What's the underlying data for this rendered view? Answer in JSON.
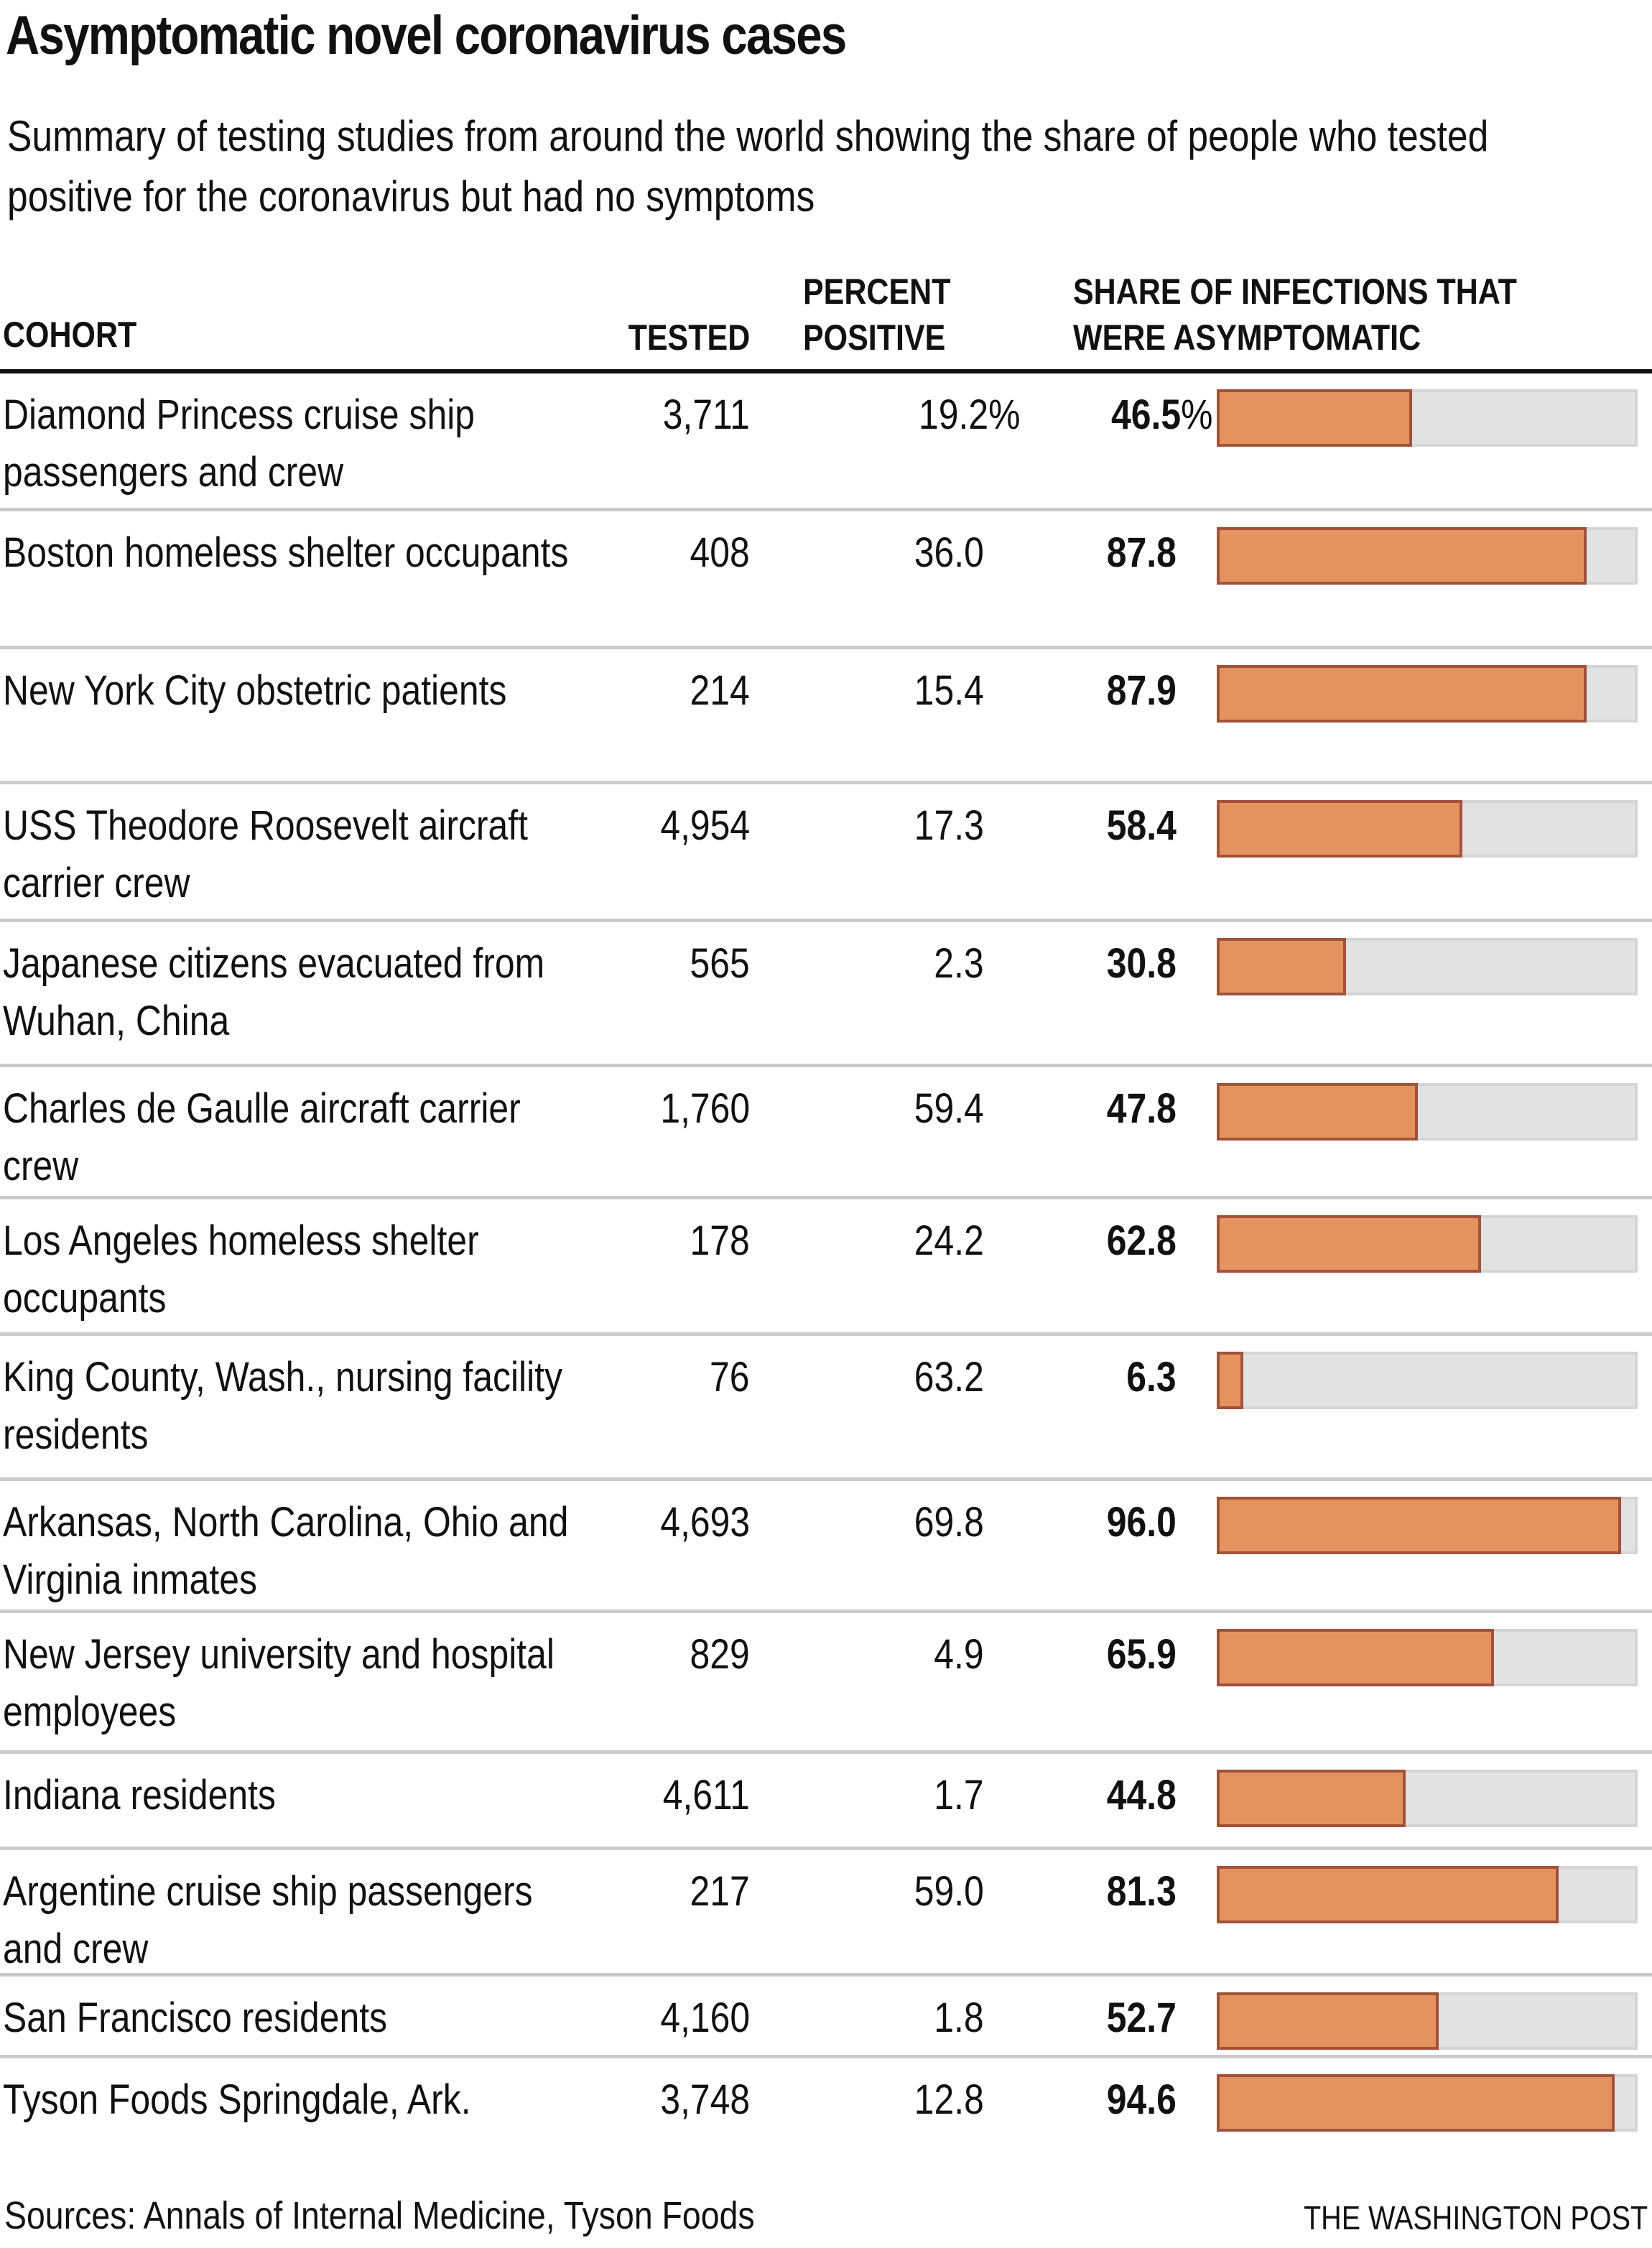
{
  "title": "Asymptomatic novel coronavirus cases",
  "subtitle": "Summary of testing studies from around the world showing the share of people who tested positive for the coronavirus but had no symptoms",
  "headers": {
    "cohort": "COHORT",
    "tested": "TESTED",
    "percent_positive_line1": "PERCENT",
    "percent_positive_line2": "POSITIVE",
    "share_line1": "SHARE OF INFECTIONS THAT",
    "share_line2": "WERE ASYMPTOMATIC"
  },
  "colors": {
    "bar_fill": "#e4935f",
    "bar_stroke": "#a0523a",
    "bar_track": "#e1e2e4"
  },
  "footer": {
    "sources": "Sources: Annals of Internal Medicine, Tyson Foods",
    "credit": "THE WASHINGTON POST"
  },
  "chart_data": {
    "type": "table",
    "title": "Asymptomatic novel coronavirus cases",
    "subtitle": "Summary of testing studies from around the world showing the share of people who tested positive for the coronavirus but had no symptoms",
    "columns": [
      "Cohort",
      "Tested",
      "Percent positive",
      "Share of infections that were asymptomatic"
    ],
    "bar_column": "Share of infections that were asymptomatic",
    "bar_range": [
      0,
      100
    ],
    "rows": [
      {
        "cohort": "Diamond Princess cruise ship passengers and crew",
        "tested": "3,711",
        "percent_positive": "19.2%",
        "share": "46.5",
        "share_suffix": "%",
        "share_value": 46.5
      },
      {
        "cohort": "Boston homeless shelter occupants",
        "tested": "408",
        "percent_positive": "36.0",
        "share": "87.8",
        "share_suffix": "",
        "share_value": 87.8
      },
      {
        "cohort": "New York City obstetric patients",
        "tested": "214",
        "percent_positive": "15.4",
        "share": "87.9",
        "share_suffix": "",
        "share_value": 87.9
      },
      {
        "cohort": "USS Theodore Roosevelt aircraft carrier crew",
        "tested": "4,954",
        "percent_positive": "17.3",
        "share": "58.4",
        "share_suffix": "",
        "share_value": 58.4
      },
      {
        "cohort": "Japanese citizens evacuated from Wuhan, China",
        "tested": "565",
        "percent_positive": "2.3",
        "share": "30.8",
        "share_suffix": "",
        "share_value": 30.8
      },
      {
        "cohort": "Charles de Gaulle aircraft carrier crew",
        "tested": "1,760",
        "percent_positive": "59.4",
        "share": "47.8",
        "share_suffix": "",
        "share_value": 47.8
      },
      {
        "cohort": "Los Angeles homeless shelter occupants",
        "tested": "178",
        "percent_positive": "24.2",
        "share": "62.8",
        "share_suffix": "",
        "share_value": 62.8
      },
      {
        "cohort": "King County, Wash., nursing facility residents",
        "tested": "76",
        "percent_positive": "63.2",
        "share": "6.3",
        "share_suffix": "",
        "share_value": 6.3
      },
      {
        "cohort": "Arkansas, North Carolina, Ohio and Virginia inmates",
        "tested": "4,693",
        "percent_positive": "69.8",
        "share": "96.0",
        "share_suffix": "",
        "share_value": 96.0
      },
      {
        "cohort": "New Jersey university and hospital employees",
        "tested": "829",
        "percent_positive": "4.9",
        "share": "65.9",
        "share_suffix": "",
        "share_value": 65.9
      },
      {
        "cohort": "Indiana residents",
        "tested": "4,611",
        "percent_positive": "1.7",
        "share": "44.8",
        "share_suffix": "",
        "share_value": 44.8
      },
      {
        "cohort": "Argentine cruise ship passengers and crew",
        "tested": "217",
        "percent_positive": "59.0",
        "share": "81.3",
        "share_suffix": "",
        "share_value": 81.3
      },
      {
        "cohort": "San Francisco residents",
        "tested": "4,160",
        "percent_positive": "1.8",
        "share": "52.7",
        "share_suffix": "",
        "share_value": 52.7
      },
      {
        "cohort": "Tyson Foods Springdale, Ark.",
        "tested": "3,748",
        "percent_positive": "12.8",
        "share": "94.6",
        "share_suffix": "",
        "share_value": 94.6
      }
    ]
  }
}
